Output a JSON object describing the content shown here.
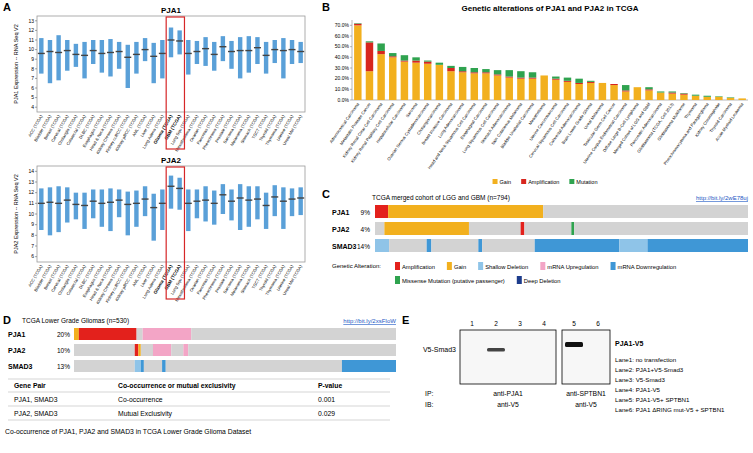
{
  "panel_labels": [
    "A",
    "B",
    "C",
    "D",
    "E"
  ],
  "chart_data": [
    {
      "type": "strip",
      "title": "PJA1",
      "y_label": "PJA1 Expression -- RNA Seq V2",
      "categories": [
        "ACC (TCGA)",
        "Bladder (TCGA)",
        "Breast (TCGA)",
        "Cervical (TCGA)",
        "Cholangio (TCGA)",
        "Colorectal (TCGA)",
        "DLBC (TCGA)",
        "Esophagus (TCGA)",
        "Head & Neck (TCGA)",
        "Kidney Chromo (TCGA)",
        "Kidney ccRCC (TCGA)",
        "Kidney pRCC (TCGA)",
        "AML (TCGA)",
        "Liver (TCGA)",
        "Lung Adeno (TCGA)",
        "Glioma (TCGA)",
        "GBM (TCGA)",
        "Lung Squ (TCGA)",
        "Mesothelioma (TCGA)",
        "Ovarian (TCGA)",
        "Pancreas (TCGA)",
        "Pheochromo (TCGA)",
        "Prostate (TCGA)",
        "Sarcoma (TCGA)",
        "Melanoma (TCGA)",
        "Stomach (TCGA)",
        "TGCT (TCGA)",
        "Thyroid (TCGA)",
        "Thymoma (TCGA)",
        "Uterine (TCGA)",
        "Uveal Mel (TCGA)"
      ],
      "values": [
        9.6,
        9.8,
        9.7,
        9.9,
        9.5,
        9.4,
        9.9,
        9.6,
        9.7,
        9.8,
        9.2,
        9.5,
        10.0,
        9.3,
        9.6,
        11.0,
        10.9,
        9.6,
        9.8,
        10.1,
        9.5,
        10.3,
        9.8,
        9.9,
        9.9,
        10.2,
        9.4,
        10.0,
        9.9,
        10.0,
        9.8
      ],
      "lows": [
        7.5,
        6.5,
        6.8,
        7.8,
        8.2,
        7.0,
        8.5,
        7.6,
        7.2,
        8.0,
        6.0,
        7.5,
        8.8,
        6.5,
        7.0,
        9.2,
        9.5,
        7.4,
        8.5,
        8.3,
        7.8,
        8.8,
        8.0,
        7.0,
        7.6,
        8.5,
        7.5,
        8.6,
        7.0,
        8.5,
        8.6
      ],
      "highs": [
        11.2,
        11.0,
        11.5,
        11.0,
        10.6,
        10.8,
        11.0,
        11.0,
        11.1,
        10.8,
        10.5,
        10.8,
        11.2,
        10.7,
        11.0,
        12.3,
        12.0,
        11.0,
        10.9,
        11.3,
        10.8,
        11.4,
        10.9,
        11.3,
        11.4,
        11.3,
        10.8,
        11.0,
        11.2,
        11.0,
        10.8
      ],
      "color": "#3d8fd1",
      "ylim": [
        3.5,
        13.5
      ],
      "yticks": [
        4,
        5,
        6,
        7,
        8,
        9,
        10,
        11,
        12,
        13
      ]
    },
    {
      "type": "strip",
      "title": "PJA2",
      "y_label": "PJA2 Expression -- RNA Seq V2",
      "categories": [
        "ACC (TCGA)",
        "Bladder (TCGA)",
        "Breast (TCGA)",
        "Cervical (TCGA)",
        "Cholangio (TCGA)",
        "Colorectal (TCGA)",
        "DLBC (TCGA)",
        "Esophagus (TCGA)",
        "Head & Neck (TCGA)",
        "Kidney Chromo (TCGA)",
        "Kidney ccRCC (TCGA)",
        "Kidney pRCC (TCGA)",
        "AML (TCGA)",
        "Liver (TCGA)",
        "Lung Adeno (TCGA)",
        "Glioma (TCGA)",
        "GBM (TCGA)",
        "Lung Squ (TCGA)",
        "Mesothelioma (TCGA)",
        "Ovarian (TCGA)",
        "Pancreas (TCGA)",
        "Pheochromo (TCGA)",
        "Prostate (TCGA)",
        "Sarcoma (TCGA)",
        "Melanoma (TCGA)",
        "Stomach (TCGA)",
        "TGCT (TCGA)",
        "Thyroid (TCGA)",
        "Thymoma (TCGA)",
        "Uterine (TCGA)",
        "Uveal Mel (TCGA)"
      ],
      "values": [
        11.0,
        11.1,
        11.0,
        11.3,
        10.9,
        10.8,
        11.2,
        11.0,
        11.1,
        11.3,
        10.9,
        11.0,
        11.4,
        10.6,
        11.0,
        12.6,
        12.4,
        11.0,
        11.2,
        11.3,
        11.0,
        11.8,
        11.2,
        11.5,
        11.3,
        11.4,
        10.8,
        11.6,
        11.2,
        11.4,
        11.5
      ],
      "lows": [
        8.5,
        8.0,
        8.3,
        9.2,
        9.5,
        8.6,
        9.6,
        8.8,
        8.4,
        9.7,
        8.0,
        8.8,
        9.8,
        7.5,
        8.5,
        10.5,
        10.4,
        8.4,
        9.6,
        9.3,
        9.0,
        10.0,
        9.4,
        8.5,
        8.8,
        9.5,
        8.6,
        9.8,
        8.6,
        9.8,
        9.9
      ],
      "highs": [
        12.4,
        12.5,
        12.6,
        12.5,
        12.0,
        12.0,
        12.3,
        12.3,
        12.4,
        12.3,
        12.1,
        12.2,
        12.6,
        11.9,
        12.3,
        13.6,
        13.4,
        12.3,
        12.3,
        12.6,
        12.2,
        12.8,
        12.3,
        12.8,
        12.6,
        12.6,
        12.0,
        12.7,
        12.5,
        12.4,
        12.5
      ],
      "color": "#3d8fd1",
      "ylim": [
        5.5,
        14.5
      ],
      "yticks": [
        6,
        7,
        8,
        9,
        10,
        11,
        12,
        13,
        14
      ]
    },
    {
      "type": "bar",
      "stacked": true,
      "legend": "bottom",
      "title": "Genetic alterations of PJA1 and PJA2 in TCGA",
      "categories": [
        "Adrenocortical Carcinoma",
        "Metastatic Prostate Cancer",
        "Kidney Renal Clear Cell Carcinoma",
        "Kidney Renal Papillary Cell Carcinoma",
        "Hepatocellular Carcinoma",
        "Sarcoma",
        "Ovarian Serous Cystadenocarcinoma",
        "Cholangiocarcinoma",
        "Breast Invasive Carcinoma",
        "Lung Adenocarcinoma",
        "Head and Neck Squamous Cell Carcinoma",
        "Esophageal Carcinoma",
        "Lung Squamous Cell Carcinoma",
        "Stomach Adenocarcinoma",
        "Skin Cutaneous Melanoma",
        "Bladder Urothelial Carcinoma",
        "Mesothelioma",
        "Uterine Carcinosarcoma",
        "Cervical Squamous Cell Carcinoma",
        "Colorectal Adenocarcinoma",
        "Brain Lower Grade Glioma",
        "Uveal Melanoma",
        "Testicular Germ Cell Cancer",
        "Uterine Corpus Endometrial Carcinoma",
        "Diffuse Large B-Cell Lymphoma",
        "Merged Cohort of LGG and GBM",
        "Pancreatic Adenocarcinoma",
        "Glioblastoma (TCGA, Cell 2013)",
        "Glioblastoma Multiforme",
        "Thymoma",
        "Pheochromocytoma and Paraganglioma",
        "Kidney Chromophobe",
        "Thyroid Carcinoma",
        "Acute Myeloid Leukemia"
      ],
      "series": [
        {
          "name": "Gain",
          "color": "#f2b01e",
          "values": [
            70,
            27,
            43,
            40,
            36,
            35,
            34,
            33,
            27,
            26,
            25,
            25,
            23,
            21,
            20,
            20,
            23,
            19,
            17,
            15,
            16,
            16,
            14,
            8,
            12,
            9,
            7,
            6,
            5,
            4,
            3,
            3,
            2,
            1.5
          ]
        },
        {
          "name": "Amplification",
          "color": "#d7261e",
          "values": [
            1.5,
            27,
            3,
            1,
            1,
            2,
            2,
            0,
            3,
            1,
            1,
            1,
            1,
            1,
            1,
            1,
            0,
            1,
            1,
            1,
            1,
            0,
            1,
            1,
            0,
            1,
            0,
            1,
            1,
            0,
            0,
            0,
            0,
            0
          ]
        },
        {
          "name": "Mutation",
          "color": "#2fa34f",
          "values": [
            0.5,
            1,
            7,
            3,
            5,
            3,
            1,
            2,
            2,
            4,
            4,
            3,
            4,
            6,
            6,
            5,
            0,
            2,
            3,
            4,
            1,
            0,
            0,
            5,
            0,
            2,
            1,
            1,
            0.5,
            1,
            1,
            0.5,
            0.5,
            0
          ]
        }
      ],
      "ylim": [
        0,
        75
      ],
      "yticks": [
        {
          "value": 0,
          "label": "0.0%"
        },
        {
          "value": 10,
          "label": "10.0%"
        },
        {
          "value": 20,
          "label": "20.0%"
        },
        {
          "value": 30,
          "label": "30.0%"
        },
        {
          "value": 40,
          "label": "40.0%"
        },
        {
          "value": 50,
          "label": "50.0%"
        },
        {
          "value": 60,
          "label": "60.0%"
        },
        {
          "value": 70,
          "label": "70.0%"
        }
      ]
    }
  ],
  "alteration_legend": {
    "title": "Genetic Alteration:",
    "items": [
      {
        "label": "Amplification",
        "color": "#e3211c"
      },
      {
        "label": "Gain",
        "color": "#f2b01e"
      },
      {
        "label": "Shallow Deletion",
        "color": "#8fc4e8"
      },
      {
        "label": "mRNA Upregulation",
        "color": "#f3a5c6"
      },
      {
        "label": "mRNA Downregulation",
        "color": "#3f97d6"
      },
      {
        "label": "Missense Mutation (putative passenger)",
        "color": "#2fa34f"
      },
      {
        "label": "Deep Deletion",
        "color": "#1d3c8c"
      }
    ]
  },
  "oncoprint_c": {
    "title": "TCGA merged cohort of LGG and GBM (n=794)",
    "link": "http://bit.ly/2wE78uj",
    "rows": [
      {
        "gene": "PJA1",
        "percent": "9%",
        "segments": [
          {
            "alteration": 0,
            "samples": 28
          },
          {
            "alteration": 1,
            "samples": 330
          },
          {
            "alteration": null,
            "samples": 436
          }
        ]
      },
      {
        "gene": "PJA2",
        "percent": "4%",
        "segments": [
          {
            "alteration": null,
            "samples": 20
          },
          {
            "alteration": 1,
            "samples": 180
          },
          {
            "alteration": null,
            "samples": 110
          },
          {
            "alteration": 0,
            "samples": 8
          },
          {
            "alteration": null,
            "samples": 100
          },
          {
            "alteration": 5,
            "samples": 6
          },
          {
            "alteration": null,
            "samples": 370
          }
        ]
      },
      {
        "gene": "SMAD3",
        "percent": "14%",
        "segments": [
          {
            "alteration": 2,
            "samples": 30
          },
          {
            "alteration": null,
            "samples": 80
          },
          {
            "alteration": 4,
            "samples": 10
          },
          {
            "alteration": null,
            "samples": 100
          },
          {
            "alteration": 4,
            "samples": 8
          },
          {
            "alteration": null,
            "samples": 112
          },
          {
            "alteration": 4,
            "samples": 180
          },
          {
            "alteration": 2,
            "samples": 60
          },
          {
            "alteration": 4,
            "samples": 214
          }
        ]
      }
    ]
  },
  "oncoprint_d": {
    "title": "TCGA Lower Grade Gliomas (n=530)",
    "link": "http://bit.ly/2xsFIoW",
    "rows": [
      {
        "gene": "PJA1",
        "percent": "20%",
        "segments": [
          {
            "alteration": 1,
            "samples": 8
          },
          {
            "alteration": 0,
            "samples": 95
          },
          {
            "alteration": null,
            "samples": 10
          },
          {
            "alteration": 3,
            "samples": 80
          },
          {
            "alteration": null,
            "samples": 337
          }
        ]
      },
      {
        "gene": "PJA2",
        "percent": "10%",
        "segments": [
          {
            "alteration": null,
            "samples": 100
          },
          {
            "alteration": 0,
            "samples": 6
          },
          {
            "alteration": 1,
            "samples": 4
          },
          {
            "alteration": null,
            "samples": 20
          },
          {
            "alteration": 3,
            "samples": 30
          },
          {
            "alteration": null,
            "samples": 20
          },
          {
            "alteration": 3,
            "samples": 8
          },
          {
            "alteration": null,
            "samples": 342
          }
        ]
      },
      {
        "gene": "SMAD3",
        "percent": "13%",
        "segments": [
          {
            "alteration": null,
            "samples": 100
          },
          {
            "alteration": 2,
            "samples": 10
          },
          {
            "alteration": 4,
            "samples": 5
          },
          {
            "alteration": null,
            "samples": 30
          },
          {
            "alteration": 4,
            "samples": 6
          },
          {
            "alteration": null,
            "samples": 290
          },
          {
            "alteration": 4,
            "samples": 89
          }
        ]
      }
    ]
  },
  "table_d": {
    "columns": [
      "Gene Pair",
      "Co-occurrence or mutual exclusivity",
      "P-value"
    ],
    "rows": [
      [
        "PJA1, SMAD3",
        "Co-occurrence",
        0.001
      ],
      [
        "PJA2, SMAD3",
        "Mutual Exclusivity",
        0.029
      ]
    ],
    "caption": "Co-occurrence of PJA1, PJA2 and SMAD3 in TCGA Lower Grade Glioma Dataset"
  },
  "blot_e": {
    "lanes": [
      1,
      2,
      3,
      4,
      5,
      6
    ],
    "bands": [
      false,
      true,
      false,
      false,
      true,
      false
    ],
    "left_label": "V5-Smad3",
    "right_label": "PJA1-V5",
    "ip_label": "IP:",
    "ib_label": "IB:",
    "ip": [
      "anti-PJA1",
      "anti-SPTBN1"
    ],
    "ib": [
      "anti-V5",
      "anti-V5"
    ],
    "lane_legend": [
      "Lane1: no transfection",
      "Lane2: PJA1+V5-Smad3",
      "Lane3: V5-Smad3",
      "Lane4: PJA1-V5",
      "Lane5: PJA1-V5+ SPTBN1",
      "Lane6: PJA1 ΔRING mut-V5 + SPTBN1"
    ]
  }
}
